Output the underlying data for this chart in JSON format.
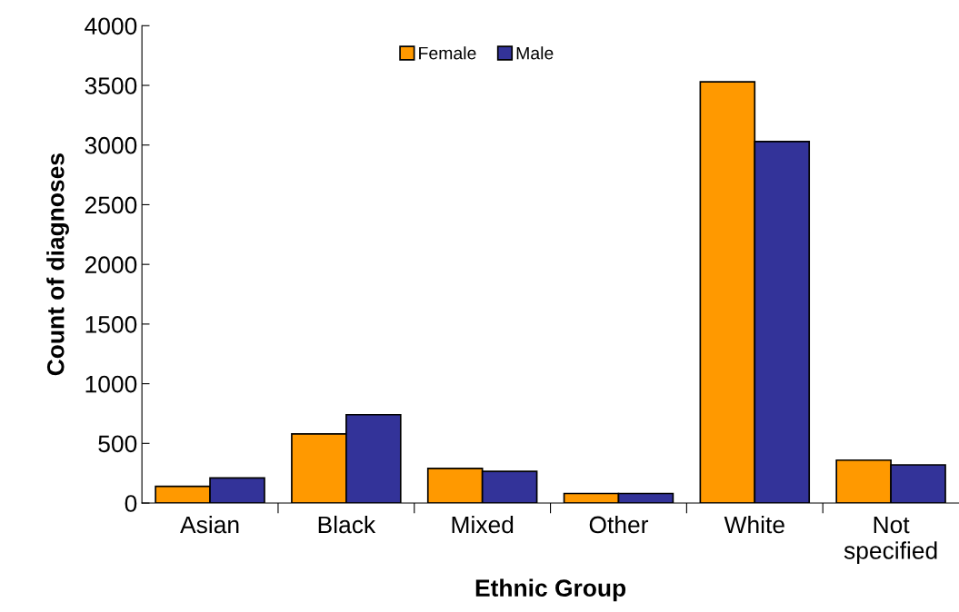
{
  "chart_data": {
    "type": "bar",
    "xlabel": "Ethnic Group",
    "ylabel": "Count of diagnoses",
    "categories": [
      "Asian",
      "Black",
      "Mixed",
      "Other",
      "White",
      "Not\nspecified"
    ],
    "series": [
      {
        "name": "Female",
        "color": "#ff9900",
        "values": [
          140,
          580,
          290,
          80,
          3530,
          360
        ]
      },
      {
        "name": "Male",
        "color": "#333399",
        "values": [
          210,
          740,
          265,
          80,
          3030,
          320
        ]
      }
    ],
    "ylim": [
      0,
      4000
    ],
    "yticks": [
      0,
      500,
      1000,
      1500,
      2000,
      2500,
      3000,
      3500,
      4000
    ],
    "grid": false,
    "legend": "top"
  }
}
